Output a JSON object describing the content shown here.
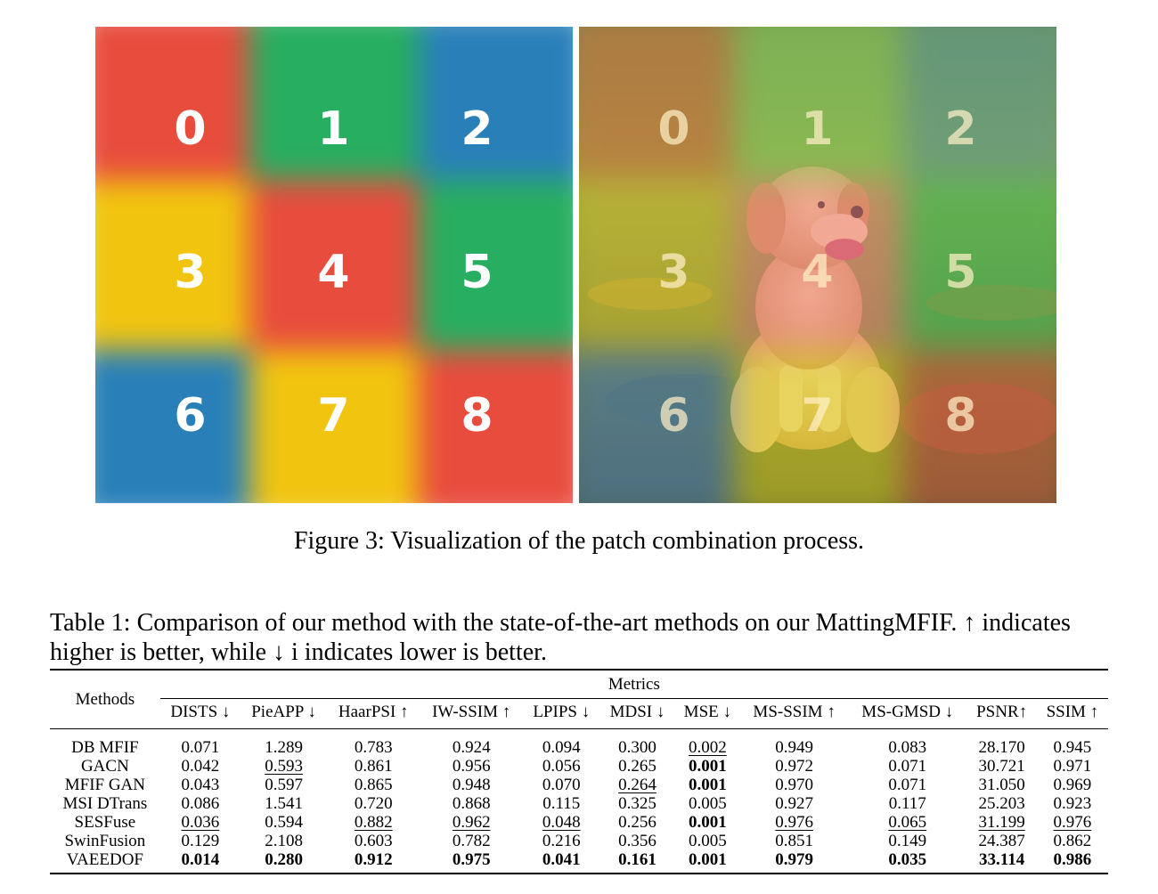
{
  "figure": {
    "patch_numbers": [
      "0",
      "1",
      "2",
      "3",
      "4",
      "5",
      "6",
      "7",
      "8"
    ],
    "left_panel_colors": [
      "#e84c3d",
      "#27ae60",
      "#2980b9",
      "#f1c40f",
      "#e84c3d",
      "#27ae60",
      "#2980b9",
      "#f1c40f",
      "#e84c3d"
    ],
    "right_panel_colors": [
      "#e07040",
      "#8fd060",
      "#60a0a0",
      "#d8c030",
      "#f08080",
      "#40c060",
      "#5080c0",
      "#e0d020",
      "#e05a40"
    ],
    "photo_subject": "puppy on grass",
    "caption": "Figure 3: Visualization of the patch combination process."
  },
  "table": {
    "caption": "Table 1: Comparison of our method with the state-of-the-art methods on our MattingMFIF. ↑ indicates higher is better, while ↓ i indicates lower is better.",
    "methods_header": "Methods",
    "metrics_header": "Metrics",
    "columns": [
      {
        "label": "DISTS ↓",
        "bold": false
      },
      {
        "label": "PieAPP ↓",
        "bold": false
      },
      {
        "label": "HaarPSI ↑",
        "bold": false
      },
      {
        "label": "IW-SSIM ↑",
        "bold": false
      },
      {
        "label": "LPIPS ↓",
        "bold": false
      },
      {
        "label": "MDSI ↓",
        "bold": false
      },
      {
        "label": "MSE ↓",
        "bold": false
      },
      {
        "label": "MS-SSIM ↑",
        "bold": false
      },
      {
        "label": "MS-GMSD ↓",
        "bold": false
      },
      {
        "label": "PSNR↑",
        "bold": false
      },
      {
        "label": "SSIM ↑",
        "bold": true
      }
    ],
    "rows": [
      {
        "method": "DB MFIF",
        "cells": [
          {
            "v": "0.071"
          },
          {
            "v": "1.289"
          },
          {
            "v": "0.783"
          },
          {
            "v": "0.924"
          },
          {
            "v": "0.094"
          },
          {
            "v": "0.300"
          },
          {
            "v": "0.002",
            "u": true
          },
          {
            "v": "0.949"
          },
          {
            "v": "0.083"
          },
          {
            "v": "28.170"
          },
          {
            "v": "0.945"
          }
        ]
      },
      {
        "method": "GACN",
        "cells": [
          {
            "v": "0.042"
          },
          {
            "v": "0.593",
            "u": true
          },
          {
            "v": "0.861"
          },
          {
            "v": "0.956"
          },
          {
            "v": "0.056"
          },
          {
            "v": "0.265"
          },
          {
            "v": "0.001",
            "b": true
          },
          {
            "v": "0.972"
          },
          {
            "v": "0.071"
          },
          {
            "v": "30.721"
          },
          {
            "v": "0.971"
          }
        ]
      },
      {
        "method": "MFIF GAN",
        "cells": [
          {
            "v": "0.043"
          },
          {
            "v": "0.597"
          },
          {
            "v": "0.865"
          },
          {
            "v": "0.948"
          },
          {
            "v": "0.070"
          },
          {
            "v": "0.264",
            "u": true
          },
          {
            "v": "0.001",
            "b": true
          },
          {
            "v": "0.970"
          },
          {
            "v": "0.071"
          },
          {
            "v": "31.050"
          },
          {
            "v": "0.969"
          }
        ]
      },
      {
        "method": "MSI DTrans",
        "cells": [
          {
            "v": "0.086"
          },
          {
            "v": "1.541"
          },
          {
            "v": "0.720"
          },
          {
            "v": "0.868"
          },
          {
            "v": "0.115"
          },
          {
            "v": "0.325"
          },
          {
            "v": "0.005"
          },
          {
            "v": "0.927"
          },
          {
            "v": "0.117"
          },
          {
            "v": "25.203"
          },
          {
            "v": "0.923"
          }
        ]
      },
      {
        "method": "SESFuse",
        "cells": [
          {
            "v": "0.036",
            "u": true
          },
          {
            "v": "0.594"
          },
          {
            "v": "0.882",
            "u": true
          },
          {
            "v": "0.962",
            "u": true
          },
          {
            "v": "0.048",
            "u": true
          },
          {
            "v": "0.256"
          },
          {
            "v": "0.001",
            "b": true
          },
          {
            "v": "0.976",
            "u": true
          },
          {
            "v": "0.065",
            "u": true
          },
          {
            "v": "31.199",
            "u": true
          },
          {
            "v": "0.976",
            "u": true
          }
        ]
      },
      {
        "method": "SwinFusion",
        "cells": [
          {
            "v": "0.129"
          },
          {
            "v": "2.108"
          },
          {
            "v": "0.603"
          },
          {
            "v": "0.782"
          },
          {
            "v": "0.216"
          },
          {
            "v": "0.356"
          },
          {
            "v": "0.005"
          },
          {
            "v": "0.851"
          },
          {
            "v": "0.149"
          },
          {
            "v": "24.387"
          },
          {
            "v": "0.862"
          }
        ]
      },
      {
        "method": "VAEEDOF",
        "cells": [
          {
            "v": "0.014",
            "b": true
          },
          {
            "v": "0.280",
            "b": true
          },
          {
            "v": "0.912",
            "b": true
          },
          {
            "v": "0.975",
            "b": true
          },
          {
            "v": "0.041",
            "b": true
          },
          {
            "v": "0.161",
            "b": true
          },
          {
            "v": "0.001",
            "b": true
          },
          {
            "v": "0.979",
            "b": true
          },
          {
            "v": "0.035",
            "b": true
          },
          {
            "v": "33.114",
            "b": true
          },
          {
            "v": "0.986",
            "b": true
          }
        ]
      }
    ]
  }
}
